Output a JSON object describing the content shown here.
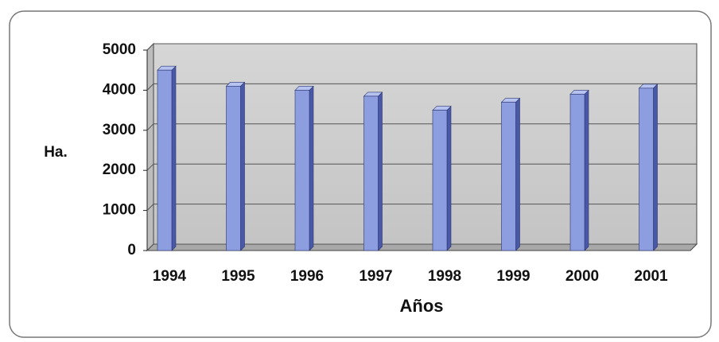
{
  "chart_data": {
    "type": "bar",
    "x_label": "Años",
    "y_label": "Ha.",
    "categories": [
      "1994",
      "1995",
      "1996",
      "1997",
      "1998",
      "1999",
      "2000",
      "2001"
    ],
    "values": [
      4500,
      4100,
      4000,
      3850,
      3500,
      3700,
      3900,
      4050
    ],
    "color": "#8c9de0",
    "ylim": [
      0,
      5000
    ],
    "yticks": [
      0,
      1000,
      2000,
      3000,
      4000,
      5000
    ],
    "grid": true
  }
}
